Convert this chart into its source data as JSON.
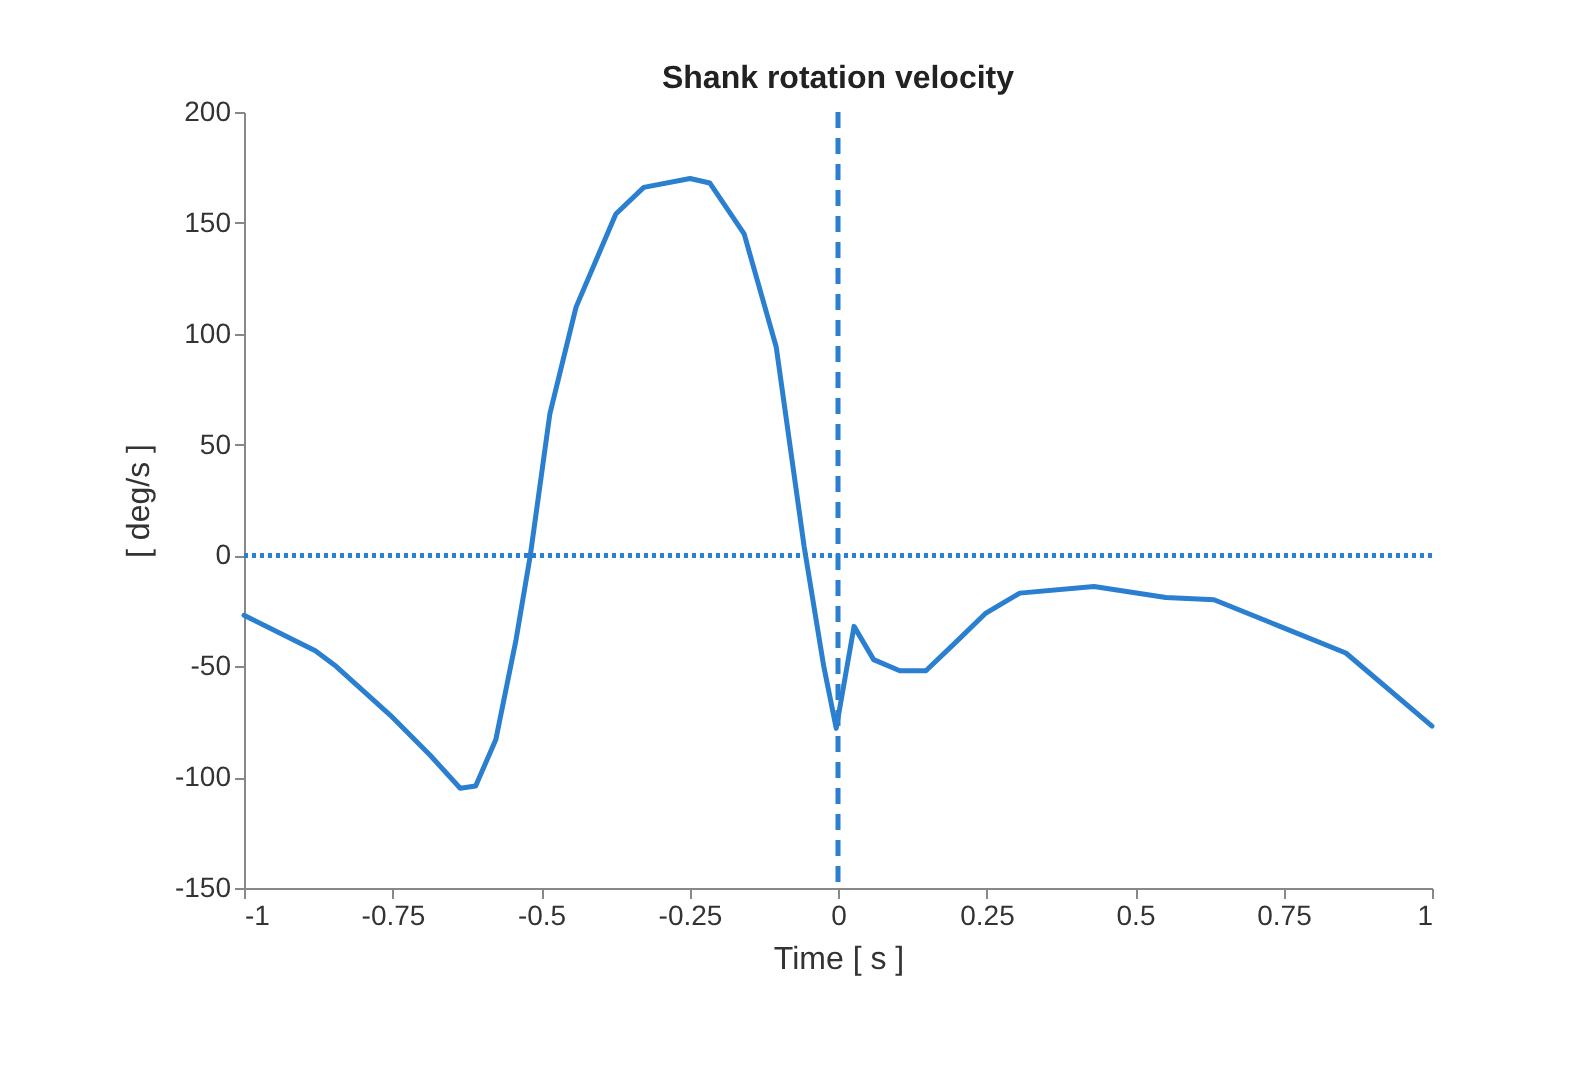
{
  "chart_data": {
    "type": "line",
    "title": "Shank rotation velocity",
    "xlabel": "Time [ s ]",
    "ylabel": "[ deg/s ]",
    "x": [
      -1,
      -0.88,
      -0.845,
      -0.754,
      -0.687,
      -0.636,
      -0.61,
      -0.576,
      -0.542,
      -0.518,
      -0.485,
      -0.441,
      -0.374,
      -0.327,
      -0.249,
      -0.216,
      -0.158,
      -0.104,
      -0.057,
      -0.024,
      -0.003,
      0.027,
      0.06,
      0.104,
      0.148,
      0.195,
      0.249,
      0.306,
      0.431,
      0.552,
      0.633,
      0.744,
      0.855,
      1
    ],
    "series": [
      {
        "color": "#2a7fd0",
        "values": [
          -27,
          -43,
          -50,
          -72,
          -90,
          -105,
          -104,
          -83,
          -38,
          0,
          64,
          112,
          154,
          166,
          170,
          168,
          145,
          94,
          4,
          -50,
          -78,
          -32,
          -47,
          -52,
          -52,
          -40,
          -26,
          -17,
          -14,
          -19,
          -20,
          -32,
          -44,
          -77
        ]
      }
    ],
    "xlim": [
      -1,
      1
    ],
    "xticks": [
      -1,
      -0.75,
      -0.5,
      -0.25,
      0,
      0.25,
      0.5,
      0.75,
      1
    ],
    "ylim": [
      -150,
      200
    ],
    "yticks": [
      -150,
      -100,
      -50,
      0,
      50,
      100,
      150,
      200
    ],
    "ref_lines": [
      {
        "axis": "y",
        "value": 0,
        "color": "#2a7fd0",
        "line_style": "dotted"
      },
      {
        "axis": "x",
        "value": 0,
        "color": "#2a7fd0",
        "line_style": "dashed"
      }
    ],
    "grid": false,
    "line_style": "solid"
  }
}
